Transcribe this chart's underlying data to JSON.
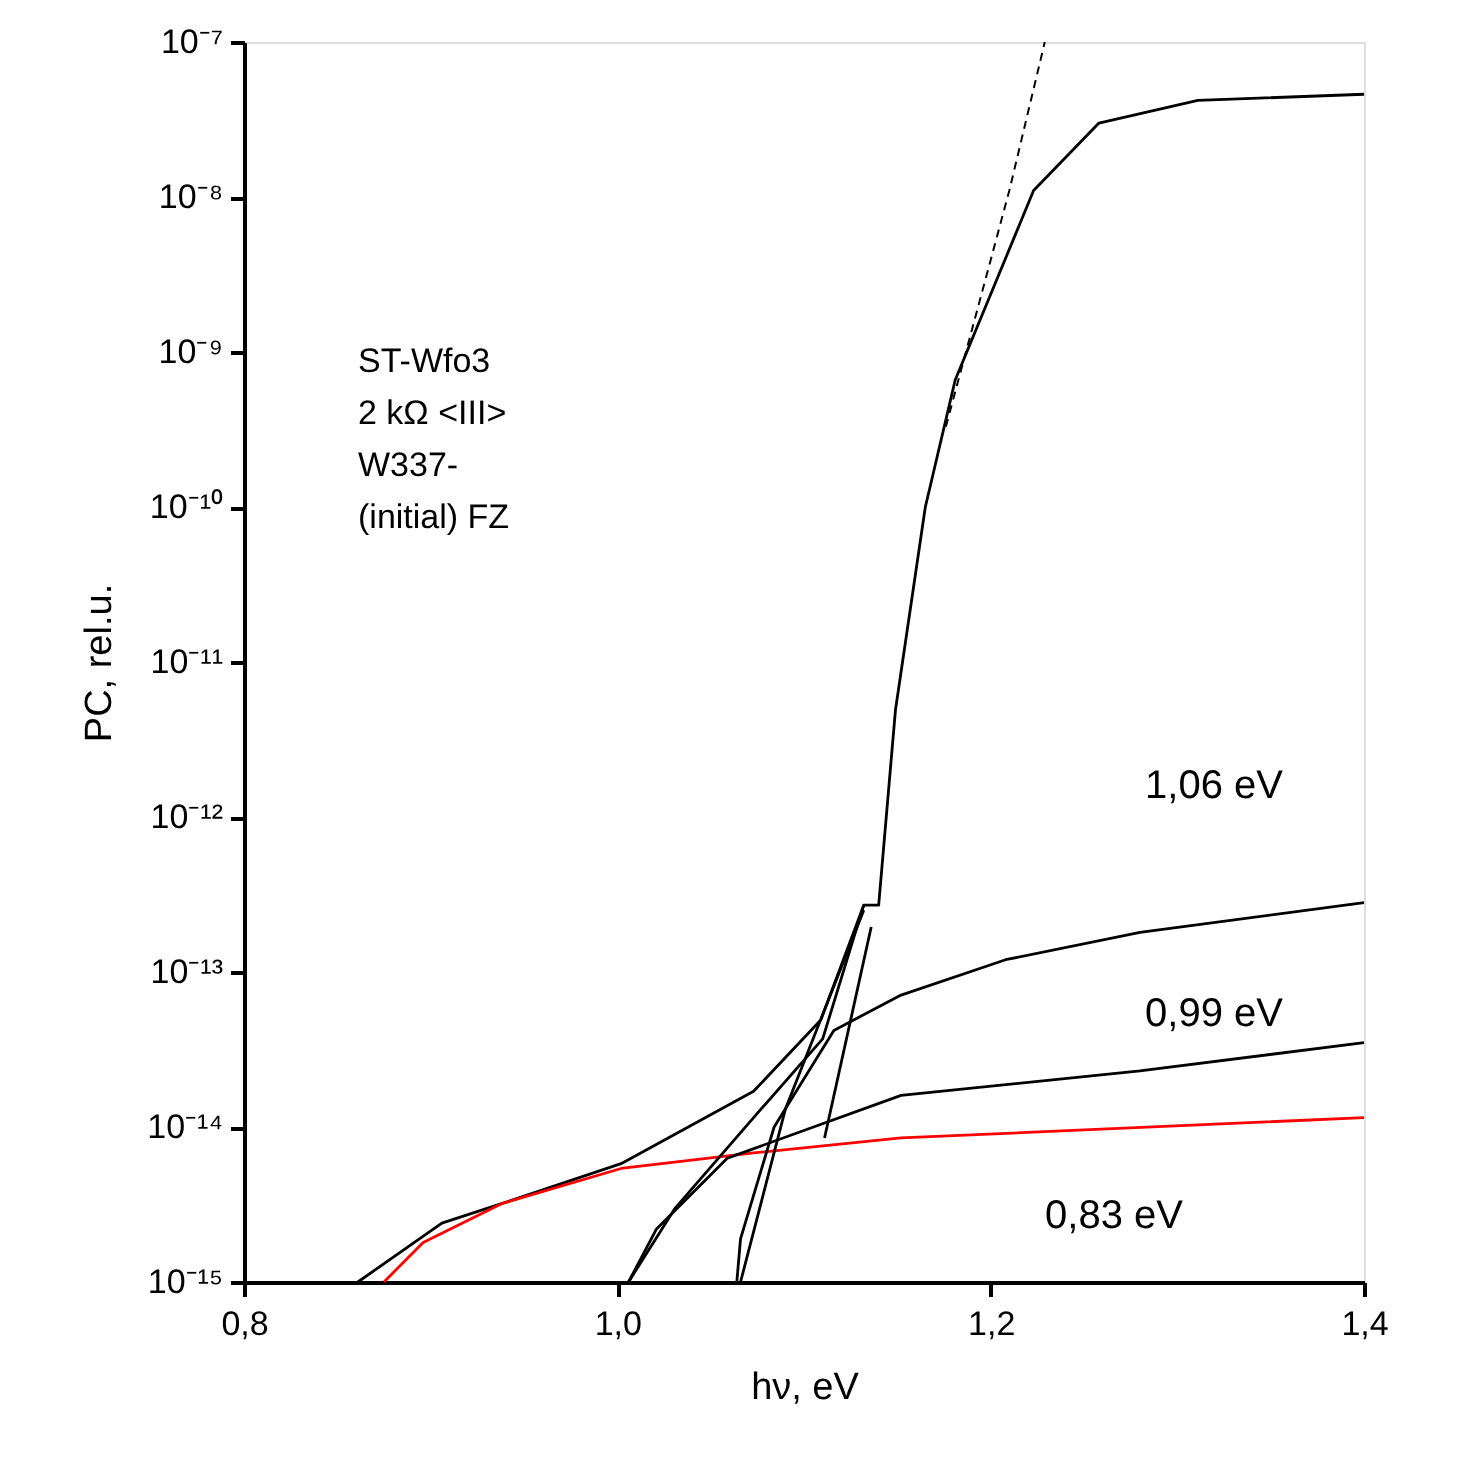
{
  "chart_data": {
    "type": "line",
    "xlabel": "hν, eV",
    "ylabel": "PC, rel.u.",
    "log": "y",
    "grid": false,
    "marker": "none",
    "xlim": [
      0.8,
      1.4
    ],
    "xticks": [
      {
        "value": 0.8,
        "label": "0,8"
      },
      {
        "value": 1.0,
        "label": "1,0"
      },
      {
        "value": 1.2,
        "label": "1,2"
      },
      {
        "value": 1.4,
        "label": "1,4"
      }
    ],
    "ylim": [
      1e-15,
      1e-07
    ],
    "yticks": [
      {
        "value": 1e-15,
        "label": "10⁻¹⁵"
      },
      {
        "value": 1e-14,
        "label": "10⁻¹⁴"
      },
      {
        "value": 1e-13,
        "label": "10⁻¹³"
      },
      {
        "value": 1e-12,
        "label": "10⁻¹²"
      },
      {
        "value": 1e-11,
        "label": "10⁻¹¹"
      },
      {
        "value": 1e-10,
        "label": "10⁻¹⁰"
      },
      {
        "value": 1e-09,
        "label": "10⁻⁹"
      },
      {
        "value": 1e-08,
        "label": "10⁻⁸"
      },
      {
        "value": 1e-07,
        "label": "10⁻⁷"
      }
    ],
    "series": [
      {
        "color": "#000000",
        "line_style": "solid",
        "x": [
          0.861,
          0.906,
          0.938,
          1.002,
          1.073,
          1.109,
          1.132,
          1.14,
          1.149,
          1.165,
          1.181,
          1.223,
          1.258,
          1.311,
          1.4
        ],
        "values": [
          1e-15,
          2.4e-15,
          3.2e-15,
          5.8e-15,
          1.7e-14,
          4.9e-14,
          2.7e-13,
          2.7e-13,
          4.9e-12,
          1e-10,
          6.6e-10,
          1.1e-08,
          3e-08,
          4.2e-08,
          4.6e-08
        ]
      },
      {
        "color": "#000000",
        "line_style": "dashed",
        "x": [
          1.176,
          1.21,
          1.229
        ],
        "values": [
          3.3e-10,
          1.1e-08,
          1e-07
        ]
      },
      {
        "color": "#ff0000",
        "line_style": "solid",
        "x": [
          0.875,
          0.896,
          0.938,
          1.002,
          1.073,
          1.152,
          1.4
        ],
        "values": [
          1e-15,
          1.8e-15,
          3.2e-15,
          5.4e-15,
          6.8e-15,
          8.5e-15,
          1.15e-14
        ]
      },
      {
        "color": "#000000",
        "line_style": "solid",
        "x": [
          1.006,
          1.021,
          1.059,
          1.152,
          1.28,
          1.4
        ],
        "values": [
          1e-15,
          2.2e-15,
          6.3e-15,
          1.6e-14,
          2.3e-14,
          3.5e-14
        ]
      },
      {
        "color": "#000000",
        "line_style": "solid",
        "x": [
          1.064,
          1.066,
          1.084,
          1.116,
          1.152,
          1.208,
          1.28,
          1.4
        ],
        "values": [
          1e-15,
          1.9e-15,
          1e-14,
          4.2e-14,
          7.1e-14,
          1.2e-13,
          1.8e-13,
          2.8e-13
        ]
      },
      {
        "color": "#000000",
        "line_style": "solid",
        "x": [
          1.006,
          1.031,
          1.073,
          1.11,
          1.132
        ],
        "values": [
          1e-15,
          3e-15,
          1.15e-14,
          3.7e-14,
          2.7e-13
        ]
      },
      {
        "color": "#000000",
        "line_style": "solid",
        "x": [
          1.066,
          1.09,
          1.132
        ],
        "values": [
          1e-15,
          1.3e-14,
          2.5e-13
        ]
      },
      {
        "color": "#000000",
        "line_style": "solid",
        "x": [
          1.111,
          1.136
        ],
        "values": [
          8.5e-15,
          1.95e-13
        ]
      }
    ],
    "annotations": [
      "ST-Wfo3",
      "2 kΩ <III>",
      "W337-",
      "(initial) FZ",
      "1,06 eV",
      "0,99 eV",
      "0,83 eV"
    ]
  }
}
